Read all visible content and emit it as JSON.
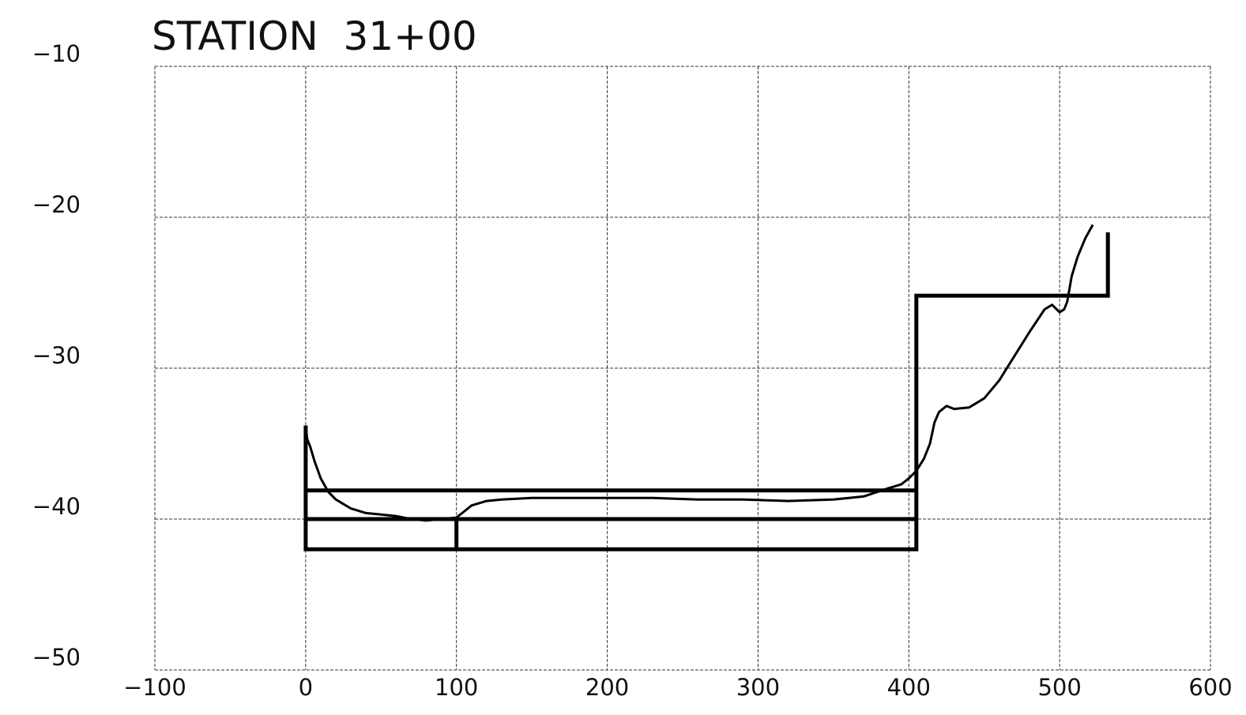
{
  "chart_data": {
    "type": "line",
    "title": "STATION  31+00",
    "xlabel": "",
    "ylabel": "",
    "xlim": [
      -100,
      600
    ],
    "ylim": [
      -50,
      -10
    ],
    "x_ticks": [
      -100,
      0,
      100,
      200,
      300,
      400,
      500,
      600
    ],
    "x_tick_labels": [
      "−100",
      "0",
      "100",
      "200",
      "300",
      "400",
      "500",
      "600"
    ],
    "y_ticks": [
      -10,
      -20,
      -30,
      -40,
      -50
    ],
    "y_tick_labels": [
      "−10",
      "−20",
      "−30",
      "−40",
      "−50"
    ],
    "grid": true,
    "series": [
      {
        "kind": "survey-profile",
        "x": [
          0,
          1,
          3,
          6,
          10,
          15,
          20,
          25,
          30,
          40,
          50,
          60,
          70,
          80,
          90,
          100,
          105,
          110,
          120,
          130,
          150,
          170,
          200,
          230,
          260,
          290,
          320,
          350,
          370,
          385,
          395,
          400,
          405,
          410,
          414,
          417,
          420,
          425,
          430,
          440,
          450,
          460,
          470,
          480,
          490,
          495,
          500,
          503,
          505,
          508,
          512,
          517,
          522
        ],
        "y": [
          -33.8,
          -34.7,
          -35.2,
          -36.2,
          -37.3,
          -38.2,
          -38.7,
          -39.0,
          -39.3,
          -39.6,
          -39.7,
          -39.8,
          -40.0,
          -40.1,
          -40.0,
          -39.9,
          -39.5,
          -39.1,
          -38.8,
          -38.7,
          -38.6,
          -38.6,
          -38.6,
          -38.6,
          -38.7,
          -38.7,
          -38.8,
          -38.7,
          -38.5,
          -38.0,
          -37.7,
          -37.3,
          -36.8,
          -36.0,
          -35.0,
          -33.6,
          -32.9,
          -32.5,
          -32.7,
          -32.6,
          -32.0,
          -30.8,
          -29.2,
          -27.6,
          -26.1,
          -25.8,
          -26.3,
          -26.1,
          -25.6,
          -23.9,
          -22.6,
          -21.4,
          -20.5
        ]
      },
      {
        "kind": "design-template-outline",
        "x": [
          0,
          0,
          405,
          405,
          532,
          532
        ],
        "y": [
          -33.8,
          -42.0,
          -42.0,
          -25.2,
          -25.2,
          -21.0
        ]
      },
      {
        "kind": "design-line",
        "x": [
          0,
          405
        ],
        "y": [
          -38.1,
          -38.1
        ]
      },
      {
        "kind": "design-line",
        "x": [
          0,
          405
        ],
        "y": [
          -40.0,
          -40.0
        ]
      },
      {
        "kind": "design-line",
        "x": [
          100,
          100
        ],
        "y": [
          -40.0,
          -42.0
        ]
      }
    ]
  }
}
